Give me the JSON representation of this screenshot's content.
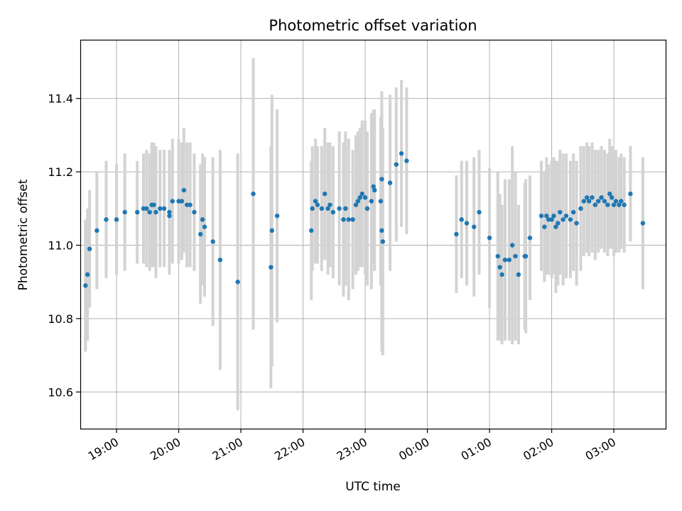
{
  "chart_data": {
    "type": "scatter",
    "title": "Photometric offset variation",
    "xlabel": "UTC time",
    "ylabel": "Photometric offset",
    "xlim": [
      "18:25",
      "03:50"
    ],
    "ylim": [
      10.5,
      11.56
    ],
    "grid": true,
    "x_ticks": [
      "19:00",
      "20:00",
      "21:00",
      "22:00",
      "23:00",
      "00:00",
      "01:00",
      "02:00",
      "03:00"
    ],
    "y_ticks": [
      "10.6",
      "10.8",
      "11.0",
      "11.2",
      "11.4"
    ],
    "marker_color": "#1f77b4",
    "errorbar_color": "#d3d3d3",
    "points": [
      {
        "x": "18:30",
        "y": 10.89,
        "err": 0.18
      },
      {
        "x": "18:32",
        "y": 10.92,
        "err": 0.18
      },
      {
        "x": "18:34",
        "y": 10.99,
        "err": 0.16
      },
      {
        "x": "18:41",
        "y": 11.04,
        "err": 0.16
      },
      {
        "x": "18:50",
        "y": 11.07,
        "err": 0.16
      },
      {
        "x": "19:00",
        "y": 11.07,
        "err": 0.15
      },
      {
        "x": "19:08",
        "y": 11.09,
        "err": 0.16
      },
      {
        "x": "19:20",
        "y": 11.09,
        "err": 0.14
      },
      {
        "x": "19:26",
        "y": 11.1,
        "err": 0.15
      },
      {
        "x": "19:29",
        "y": 11.1,
        "err": 0.16
      },
      {
        "x": "19:32",
        "y": 11.09,
        "err": 0.16
      },
      {
        "x": "19:34",
        "y": 11.11,
        "err": 0.17
      },
      {
        "x": "19:36",
        "y": 11.11,
        "err": 0.17
      },
      {
        "x": "19:38",
        "y": 11.09,
        "err": 0.18
      },
      {
        "x": "19:42",
        "y": 11.1,
        "err": 0.16
      },
      {
        "x": "19:46",
        "y": 11.1,
        "err": 0.16
      },
      {
        "x": "19:51",
        "y": 11.08,
        "err": 0.16
      },
      {
        "x": "19:51",
        "y": 11.09,
        "err": 0.17
      },
      {
        "x": "19:54",
        "y": 11.12,
        "err": 0.17
      },
      {
        "x": "20:00",
        "y": 11.12,
        "err": 0.17
      },
      {
        "x": "20:03",
        "y": 11.12,
        "err": 0.16
      },
      {
        "x": "20:05",
        "y": 11.15,
        "err": 0.17
      },
      {
        "x": "20:08",
        "y": 11.11,
        "err": 0.17
      },
      {
        "x": "20:11",
        "y": 11.11,
        "err": 0.17
      },
      {
        "x": "20:15",
        "y": 11.09,
        "err": 0.16
      },
      {
        "x": "20:21",
        "y": 11.03,
        "err": 0.19
      },
      {
        "x": "20:23",
        "y": 11.07,
        "err": 0.18
      },
      {
        "x": "20:25",
        "y": 11.05,
        "err": 0.19
      },
      {
        "x": "20:33",
        "y": 11.01,
        "err": 0.23
      },
      {
        "x": "20:40",
        "y": 10.96,
        "err": 0.3
      },
      {
        "x": "20:57",
        "y": 10.9,
        "err": 0.35
      },
      {
        "x": "21:12",
        "y": 11.14,
        "err": 0.37
      },
      {
        "x": "21:29",
        "y": 10.94,
        "err": 0.33
      },
      {
        "x": "21:30",
        "y": 11.04,
        "err": 0.37
      },
      {
        "x": "21:35",
        "y": 11.08,
        "err": 0.29
      },
      {
        "x": "22:08",
        "y": 11.04,
        "err": 0.19
      },
      {
        "x": "22:09",
        "y": 11.1,
        "err": 0.17
      },
      {
        "x": "22:12",
        "y": 11.12,
        "err": 0.17
      },
      {
        "x": "22:14",
        "y": 11.11,
        "err": 0.16
      },
      {
        "x": "22:18",
        "y": 11.1,
        "err": 0.17
      },
      {
        "x": "22:21",
        "y": 11.14,
        "err": 0.18
      },
      {
        "x": "22:24",
        "y": 11.1,
        "err": 0.18
      },
      {
        "x": "22:26",
        "y": 11.11,
        "err": 0.17
      },
      {
        "x": "22:29",
        "y": 11.09,
        "err": 0.18
      },
      {
        "x": "22:35",
        "y": 11.1,
        "err": 0.21
      },
      {
        "x": "22:39",
        "y": 11.07,
        "err": 0.21
      },
      {
        "x": "22:41",
        "y": 11.1,
        "err": 0.21
      },
      {
        "x": "22:44",
        "y": 11.07,
        "err": 0.22
      },
      {
        "x": "22:48",
        "y": 11.07,
        "err": 0.19
      },
      {
        "x": "22:51",
        "y": 11.11,
        "err": 0.19
      },
      {
        "x": "22:53",
        "y": 11.12,
        "err": 0.19
      },
      {
        "x": "22:55",
        "y": 11.13,
        "err": 0.19
      },
      {
        "x": "22:57",
        "y": 11.14,
        "err": 0.2
      },
      {
        "x": "23:00",
        "y": 11.13,
        "err": 0.21
      },
      {
        "x": "23:02",
        "y": 11.1,
        "err": 0.21
      },
      {
        "x": "23:06",
        "y": 11.12,
        "err": 0.24
      },
      {
        "x": "23:08",
        "y": 11.16,
        "err": 0.21
      },
      {
        "x": "23:09",
        "y": 11.15,
        "err": 0.22
      },
      {
        "x": "23:15",
        "y": 11.12,
        "err": 0.23
      },
      {
        "x": "23:16",
        "y": 11.18,
        "err": 0.24
      },
      {
        "x": "23:16",
        "y": 11.04,
        "err": 0.33
      },
      {
        "x": "23:17",
        "y": 11.01,
        "err": 0.31
      },
      {
        "x": "23:24",
        "y": 11.17,
        "err": 0.24
      },
      {
        "x": "23:30",
        "y": 11.22,
        "err": 0.21
      },
      {
        "x": "23:35",
        "y": 11.25,
        "err": 0.2
      },
      {
        "x": "23:40",
        "y": 11.23,
        "err": 0.2
      },
      {
        "x": "00:28",
        "y": 11.03,
        "err": 0.16
      },
      {
        "x": "00:33",
        "y": 11.07,
        "err": 0.16
      },
      {
        "x": "00:38",
        "y": 11.06,
        "err": 0.17
      },
      {
        "x": "00:45",
        "y": 11.05,
        "err": 0.19
      },
      {
        "x": "00:50",
        "y": 11.09,
        "err": 0.17
      },
      {
        "x": "01:00",
        "y": 11.02,
        "err": 0.19
      },
      {
        "x": "01:08",
        "y": 10.97,
        "err": 0.23
      },
      {
        "x": "01:10",
        "y": 10.94,
        "err": 0.2
      },
      {
        "x": "01:12",
        "y": 10.92,
        "err": 0.19
      },
      {
        "x": "01:15",
        "y": 10.96,
        "err": 0.22
      },
      {
        "x": "01:19",
        "y": 10.96,
        "err": 0.22
      },
      {
        "x": "01:22",
        "y": 11.0,
        "err": 0.27
      },
      {
        "x": "01:25",
        "y": 10.97,
        "err": 0.23
      },
      {
        "x": "01:28",
        "y": 10.92,
        "err": 0.19
      },
      {
        "x": "01:34",
        "y": 10.97,
        "err": 0.2
      },
      {
        "x": "01:35",
        "y": 10.97,
        "err": 0.21
      },
      {
        "x": "01:39",
        "y": 11.02,
        "err": 0.17
      },
      {
        "x": "01:50",
        "y": 11.08,
        "err": 0.15
      },
      {
        "x": "01:53",
        "y": 11.05,
        "err": 0.15
      },
      {
        "x": "01:55",
        "y": 11.08,
        "err": 0.16
      },
      {
        "x": "01:57",
        "y": 11.07,
        "err": 0.15
      },
      {
        "x": "02:00",
        "y": 11.07,
        "err": 0.16
      },
      {
        "x": "02:02",
        "y": 11.08,
        "err": 0.16
      },
      {
        "x": "02:04",
        "y": 11.05,
        "err": 0.18
      },
      {
        "x": "02:06",
        "y": 11.06,
        "err": 0.17
      },
      {
        "x": "02:08",
        "y": 11.09,
        "err": 0.17
      },
      {
        "x": "02:11",
        "y": 11.07,
        "err": 0.18
      },
      {
        "x": "02:14",
        "y": 11.08,
        "err": 0.17
      },
      {
        "x": "02:18",
        "y": 11.07,
        "err": 0.16
      },
      {
        "x": "02:21",
        "y": 11.09,
        "err": 0.16
      },
      {
        "x": "02:24",
        "y": 11.06,
        "err": 0.17
      },
      {
        "x": "02:28",
        "y": 11.1,
        "err": 0.17
      },
      {
        "x": "02:31",
        "y": 11.12,
        "err": 0.15
      },
      {
        "x": "02:34",
        "y": 11.13,
        "err": 0.15
      },
      {
        "x": "02:36",
        "y": 11.12,
        "err": 0.15
      },
      {
        "x": "02:39",
        "y": 11.13,
        "err": 0.15
      },
      {
        "x": "02:42",
        "y": 11.11,
        "err": 0.15
      },
      {
        "x": "02:45",
        "y": 11.12,
        "err": 0.14
      },
      {
        "x": "02:48",
        "y": 11.13,
        "err": 0.14
      },
      {
        "x": "02:51",
        "y": 11.12,
        "err": 0.14
      },
      {
        "x": "02:54",
        "y": 11.11,
        "err": 0.14
      },
      {
        "x": "02:56",
        "y": 11.14,
        "err": 0.15
      },
      {
        "x": "02:58",
        "y": 11.13,
        "err": 0.14
      },
      {
        "x": "03:00",
        "y": 11.11,
        "err": 0.14
      },
      {
        "x": "03:02",
        "y": 11.12,
        "err": 0.14
      },
      {
        "x": "03:05",
        "y": 11.11,
        "err": 0.13
      },
      {
        "x": "03:07",
        "y": 11.12,
        "err": 0.13
      },
      {
        "x": "03:10",
        "y": 11.11,
        "err": 0.13
      },
      {
        "x": "03:16",
        "y": 11.14,
        "err": 0.13
      },
      {
        "x": "03:28",
        "y": 11.06,
        "err": 0.18
      }
    ]
  }
}
